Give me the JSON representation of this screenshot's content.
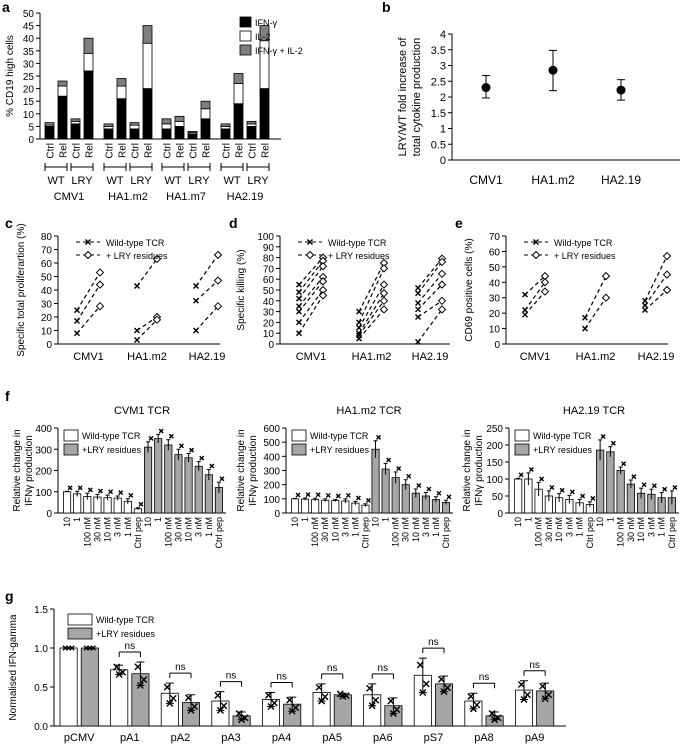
{
  "figure": {
    "panel_letters": [
      "a",
      "b",
      "c",
      "d",
      "e",
      "f",
      "g"
    ]
  },
  "chart_data": [
    {
      "id": "a",
      "type": "bar",
      "stacked": true,
      "ylabel": "% CD19 high cells",
      "ylim": [
        0,
        50
      ],
      "yticks": [
        0,
        5,
        10,
        15,
        20,
        25,
        30,
        35,
        40,
        45,
        50
      ],
      "legend": [
        "IFN-γ",
        "IL-2",
        "IFN-γ + IL-2"
      ],
      "colors": [
        "#000000",
        "#ffffff",
        "#7f7f7f"
      ],
      "groups": [
        {
          "name": "CMV1",
          "bars": [
            {
              "label": "Ctrl",
              "tcr": "WT",
              "values": [
                5,
                0.5,
                1
              ]
            },
            {
              "label": "Rel",
              "tcr": "WT",
              "values": [
                17,
                4,
                2
              ]
            },
            {
              "label": "Ctrl",
              "tcr": "LRY",
              "values": [
                6,
                1,
                1
              ]
            },
            {
              "label": "Rel",
              "tcr": "LRY",
              "values": [
                27,
                7,
                6
              ]
            }
          ]
        },
        {
          "name": "HA1.m2",
          "bars": [
            {
              "label": "Ctrl",
              "tcr": "WT",
              "values": [
                4,
                1,
                1
              ]
            },
            {
              "label": "Rel",
              "tcr": "WT",
              "values": [
                16,
                5,
                3
              ]
            },
            {
              "label": "Ctrl",
              "tcr": "LRY",
              "values": [
                4,
                1.5,
                1
              ]
            },
            {
              "label": "Rel",
              "tcr": "LRY",
              "values": [
                20,
                18,
                7
              ]
            }
          ]
        },
        {
          "name": "HA1.m7",
          "bars": [
            {
              "label": "Ctrl",
              "tcr": "WT",
              "values": [
                4,
                2,
                2
              ]
            },
            {
              "label": "Rel",
              "tcr": "WT",
              "values": [
                5,
                2,
                2
              ]
            },
            {
              "label": "Ctrl",
              "tcr": "LRY",
              "values": [
                2,
                0.5,
                0.5
              ]
            },
            {
              "label": "Rel",
              "tcr": "LRY",
              "values": [
                8,
                4,
                3
              ]
            }
          ]
        },
        {
          "name": "HA2.19",
          "bars": [
            {
              "label": "Ctrl",
              "tcr": "WT",
              "values": [
                4,
                1,
                1
              ]
            },
            {
              "label": "Rel",
              "tcr": "WT",
              "values": [
                14,
                8,
                4
              ]
            },
            {
              "label": "Ctrl",
              "tcr": "LRY",
              "values": [
                5,
                1,
                1
              ]
            },
            {
              "label": "Rel",
              "tcr": "LRY",
              "values": [
                20,
                19,
                6
              ]
            }
          ]
        }
      ],
      "group_labels": [
        "WT",
        "LRY"
      ]
    },
    {
      "id": "b",
      "type": "scatter",
      "ylabel": "LRY/WT fold increase of total cytokine production",
      "ylabel_lines": [
        "LRY/WT fold increase of",
        "total cytokine production"
      ],
      "ylim": [
        0,
        4
      ],
      "yticks": [
        0,
        0.5,
        1,
        1.5,
        2,
        2.5,
        3,
        3.5,
        4
      ],
      "categories": [
        "CMV1",
        "HA1.m2",
        "HA2.19"
      ],
      "values": [
        2.3,
        2.85,
        2.22
      ],
      "errors_low": [
        1.97,
        2.2,
        1.9
      ],
      "errors_high": [
        2.68,
        3.48,
        2.55
      ]
    },
    {
      "id": "c",
      "type": "line",
      "ylabel": "Specific total proliferartion (%)",
      "ylim": [
        0,
        80
      ],
      "yticks": [
        0,
        10,
        20,
        30,
        40,
        50,
        60,
        70,
        80
      ],
      "legend": [
        "Wild-type TCR",
        "+ LRY residues"
      ],
      "categories": [
        "CMV1",
        "HA1.m2",
        "HA2.19"
      ],
      "pairs": [
        [
          [
            25,
            53
          ],
          [
            17,
            44
          ],
          [
            8,
            28
          ]
        ],
        [
          [
            43,
            63
          ],
          [
            10,
            20
          ],
          [
            3,
            18
          ]
        ],
        [
          [
            43,
            66
          ],
          [
            32,
            47
          ],
          [
            10,
            28
          ]
        ]
      ]
    },
    {
      "id": "d",
      "type": "line",
      "ylabel": "Specific killing (%)",
      "ylim": [
        0,
        100
      ],
      "yticks": [
        0,
        10,
        20,
        30,
        40,
        50,
        60,
        70,
        80,
        90,
        100
      ],
      "legend": [
        "Wild-type TCR",
        "+ LRY residues"
      ],
      "categories": [
        "CMV1",
        "HA1.m2",
        "HA2.19"
      ],
      "pairs": [
        [
          [
            55,
            80
          ],
          [
            48,
            77
          ],
          [
            42,
            72
          ],
          [
            35,
            62
          ],
          [
            30,
            58
          ],
          [
            20,
            50
          ],
          [
            10,
            45
          ]
        ],
        [
          [
            30,
            75
          ],
          [
            20,
            70
          ],
          [
            15,
            55
          ],
          [
            10,
            47
          ],
          [
            8,
            40
          ],
          [
            5,
            32
          ]
        ],
        [
          [
            52,
            79
          ],
          [
            47,
            76
          ],
          [
            38,
            65
          ],
          [
            32,
            55
          ],
          [
            25,
            40
          ],
          [
            2,
            32
          ]
        ]
      ]
    },
    {
      "id": "e",
      "type": "line",
      "ylabel": "CD69 positive cells (%)",
      "ylim": [
        0,
        70
      ],
      "yticks": [
        0,
        10,
        20,
        30,
        40,
        50,
        60,
        70
      ],
      "legend": [
        "Wild-type TCR",
        "+ LRY residues"
      ],
      "categories": [
        "CMV1",
        "HA1.m2",
        "HA2.19"
      ],
      "pairs": [
        [
          [
            32,
            44
          ],
          [
            22,
            40
          ],
          [
            19,
            34
          ]
        ],
        [
          [
            17,
            44
          ],
          [
            10,
            30
          ]
        ],
        [
          [
            28,
            57
          ],
          [
            25,
            45
          ],
          [
            22,
            35
          ]
        ]
      ]
    },
    {
      "id": "f1",
      "type": "bar",
      "title": "CVM1 TCR",
      "ylabel_lines": [
        "Relative change in",
        "IFNγ production"
      ],
      "ylim": [
        0,
        400
      ],
      "yticks": [
        0,
        100,
        200,
        300,
        400
      ],
      "legend": [
        "Wild-type TCR",
        "+LRY residues"
      ],
      "categories": [
        "10",
        "1",
        "100 nM",
        "30 nM",
        "10 nM",
        "3 nM",
        "1 nM",
        "Ctrl pep"
      ],
      "series": [
        {
          "name": "Wild-type TCR",
          "values": [
            100,
            90,
            78,
            75,
            72,
            70,
            55,
            20
          ],
          "errors": [
            2,
            12,
            15,
            12,
            12,
            10,
            12,
            5
          ]
        },
        {
          "name": "+LRY residues",
          "values": [
            310,
            350,
            320,
            275,
            260,
            220,
            180,
            120
          ],
          "errors": [
            25,
            20,
            25,
            25,
            20,
            22,
            25,
            25
          ]
        }
      ]
    },
    {
      "id": "f2",
      "type": "bar",
      "title": "HA1.m2 TCR",
      "ylabel_lines": [
        "Relative change in",
        "IFNγ production"
      ],
      "ylim": [
        0,
        600
      ],
      "yticks": [
        0,
        100,
        200,
        300,
        400,
        500,
        600
      ],
      "legend": [
        "Wild-type TCR",
        "+LRY residues"
      ],
      "categories": [
        "10",
        "1",
        "100 nM",
        "30 nM",
        "10 nM",
        "3 nM",
        "1 nM",
        "Ctrl pep"
      ],
      "series": [
        {
          "name": "Wild-type TCR",
          "values": [
            100,
            98,
            95,
            90,
            88,
            85,
            70,
            55
          ],
          "errors": [
            3,
            8,
            10,
            10,
            8,
            15,
            12,
            10
          ]
        },
        {
          "name": "+LRY residues",
          "values": [
            450,
            310,
            250,
            200,
            140,
            120,
            95,
            75
          ],
          "errors": [
            60,
            40,
            40,
            35,
            30,
            25,
            20,
            15
          ]
        }
      ]
    },
    {
      "id": "f3",
      "type": "bar",
      "title": "HA2.19 TCR",
      "ylabel_lines": [
        "Relative change in",
        "IFNγ production"
      ],
      "ylim": [
        0,
        250
      ],
      "yticks": [
        0,
        50,
        100,
        150,
        200,
        250
      ],
      "legend": [
        "Wild-type TCR",
        "+LRY residues"
      ],
      "categories": [
        "10",
        "1",
        "100 nM",
        "30 nM",
        "10 nM",
        "3 nM",
        "1 nM",
        "Ctrl pep"
      ],
      "series": [
        {
          "name": "Wild-type TCR",
          "values": [
            100,
            100,
            70,
            50,
            45,
            40,
            30,
            25
          ],
          "errors": [
            2,
            18,
            20,
            15,
            12,
            12,
            10,
            8
          ]
        },
        {
          "name": "+LRY residues",
          "values": [
            185,
            180,
            125,
            85,
            58,
            55,
            45,
            45
          ],
          "errors": [
            30,
            15,
            10,
            12,
            15,
            15,
            15,
            20
          ]
        }
      ]
    },
    {
      "id": "g",
      "type": "bar",
      "ylabel": "Normalised IFN-gamma",
      "ylim": [
        0,
        1.5
      ],
      "yticks": [
        0.0,
        0.5,
        1.0,
        1.5
      ],
      "legend": [
        "Wild-type TCR",
        "+LRY residues"
      ],
      "categories": [
        "pCMV",
        "pA1",
        "pA2",
        "pA3",
        "pA4",
        "pA5",
        "pA6",
        "pS7",
        "pA8",
        "pA9"
      ],
      "series": [
        {
          "name": "Wild-type TCR",
          "values": [
            1.0,
            0.72,
            0.42,
            0.32,
            0.34,
            0.43,
            0.4,
            0.65,
            0.32,
            0.46
          ],
          "errors": [
            0,
            0.06,
            0.13,
            0.12,
            0.09,
            0.11,
            0.14,
            0.22,
            0.1,
            0.12
          ]
        },
        {
          "name": "+LRY residues",
          "values": [
            1.0,
            0.67,
            0.3,
            0.13,
            0.28,
            0.4,
            0.26,
            0.54,
            0.13,
            0.45
          ],
          "errors": [
            0,
            0.15,
            0.1,
            0.05,
            0.09,
            0.02,
            0.1,
            0.1,
            0.05,
            0.1
          ]
        }
      ],
      "significance": "ns"
    }
  ]
}
